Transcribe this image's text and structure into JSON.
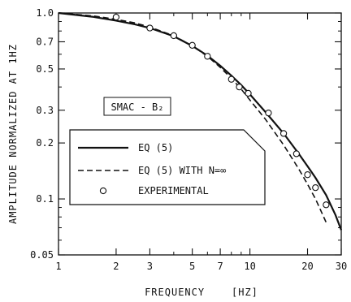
{
  "chart_data": {
    "type": "line",
    "title": "",
    "xlabel": "FREQUENCY    [HZ]",
    "ylabel": "AMPLITUDE NORMALIZED AT 1HZ",
    "x_scale": "log",
    "y_scale": "log",
    "xlim": [
      1,
      30
    ],
    "ylim": [
      0.05,
      1.0
    ],
    "x_ticks": [
      {
        "value": 1,
        "label": "1"
      },
      {
        "value": 2,
        "label": "2"
      },
      {
        "value": 3,
        "label": "3"
      },
      {
        "value": 5,
        "label": "5"
      },
      {
        "value": 7,
        "label": "7"
      },
      {
        "value": 10,
        "label": "10"
      },
      {
        "value": 20,
        "label": "20"
      },
      {
        "value": 30,
        "label": "30"
      }
    ],
    "x_minor_ticks": [
      4,
      6,
      8,
      9
    ],
    "y_ticks": [
      {
        "value": 1.0,
        "label": "1.0"
      },
      {
        "value": 0.7,
        "label": "0.7"
      },
      {
        "value": 0.5,
        "label": "0.5"
      },
      {
        "value": 0.3,
        "label": "0.3"
      },
      {
        "value": 0.2,
        "label": "0.2"
      },
      {
        "value": 0.1,
        "label": "0.1"
      },
      {
        "value": 0.05,
        "label": "0.05"
      }
    ],
    "y_minor_ticks": [
      0.9,
      0.8,
      0.6,
      0.4,
      0.09,
      0.08,
      0.07,
      0.06
    ],
    "annotation": {
      "text": "SMAC - B₂"
    },
    "legend_position": "center-left",
    "grid": false,
    "series": [
      {
        "name": "EQ (5)",
        "style": "solid",
        "points": [
          [
            1,
            1.0
          ],
          [
            1.5,
            0.955
          ],
          [
            2,
            0.91
          ],
          [
            2.5,
            0.87
          ],
          [
            3,
            0.83
          ],
          [
            4,
            0.75
          ],
          [
            5,
            0.665
          ],
          [
            6,
            0.59
          ],
          [
            7,
            0.52
          ],
          [
            8,
            0.46
          ],
          [
            9,
            0.41
          ],
          [
            10,
            0.365
          ],
          [
            12,
            0.295
          ],
          [
            15,
            0.225
          ],
          [
            18,
            0.175
          ],
          [
            20,
            0.15
          ],
          [
            22,
            0.13
          ],
          [
            25,
            0.105
          ],
          [
            28,
            0.082
          ],
          [
            30,
            0.068
          ]
        ]
      },
      {
        "name": "EQ (5) WITH N=∞",
        "style": "dashed",
        "points": [
          [
            1,
            1.0
          ],
          [
            1.5,
            0.965
          ],
          [
            2,
            0.925
          ],
          [
            2.5,
            0.885
          ],
          [
            3,
            0.84
          ],
          [
            4,
            0.755
          ],
          [
            5,
            0.665
          ],
          [
            6,
            0.585
          ],
          [
            7,
            0.51
          ],
          [
            8,
            0.445
          ],
          [
            9,
            0.39
          ],
          [
            10,
            0.34
          ],
          [
            12,
            0.27
          ],
          [
            15,
            0.195
          ],
          [
            18,
            0.145
          ],
          [
            20,
            0.12
          ],
          [
            22,
            0.1
          ],
          [
            25,
            0.075
          ]
        ]
      },
      {
        "name": "EXPERIMENTAL",
        "style": "markers",
        "points": [
          [
            2,
            0.95
          ],
          [
            3,
            0.83
          ],
          [
            4,
            0.755
          ],
          [
            5,
            0.67
          ],
          [
            6,
            0.585
          ],
          [
            8,
            0.44
          ],
          [
            8.8,
            0.4
          ],
          [
            9.8,
            0.37
          ],
          [
            12.5,
            0.29
          ],
          [
            15,
            0.225
          ],
          [
            17.5,
            0.175
          ],
          [
            20,
            0.135
          ],
          [
            22,
            0.115
          ],
          [
            25,
            0.093
          ]
        ]
      }
    ]
  }
}
